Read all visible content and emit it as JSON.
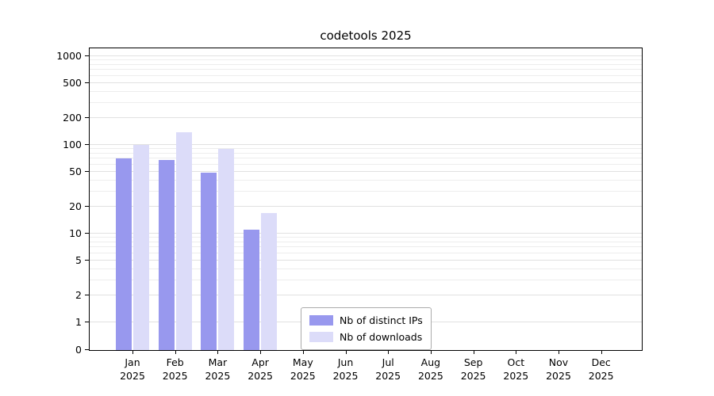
{
  "chart_data": {
    "type": "bar",
    "title": "codetools 2025",
    "categories": [
      "Jan",
      "Feb",
      "Mar",
      "Apr",
      "May",
      "Jun",
      "Jul",
      "Aug",
      "Sep",
      "Oct",
      "Nov",
      "Dec"
    ],
    "year": "2025",
    "series": [
      {
        "name": "Nb of distinct IPs",
        "color": "#9898ee",
        "values": [
          70,
          68,
          49,
          11,
          null,
          null,
          null,
          null,
          null,
          null,
          null,
          null
        ]
      },
      {
        "name": "Nb of downloads",
        "color": "#dcdcf9",
        "values": [
          100,
          140,
          90,
          17,
          null,
          null,
          null,
          null,
          null,
          null,
          null,
          null
        ]
      }
    ],
    "yscale": "symlog",
    "yticks": [
      0,
      1,
      2,
      5,
      10,
      20,
      50,
      100,
      200,
      500,
      1000
    ],
    "ylim": [
      0,
      1000
    ],
    "grid": true,
    "legend_position": "lower center"
  }
}
